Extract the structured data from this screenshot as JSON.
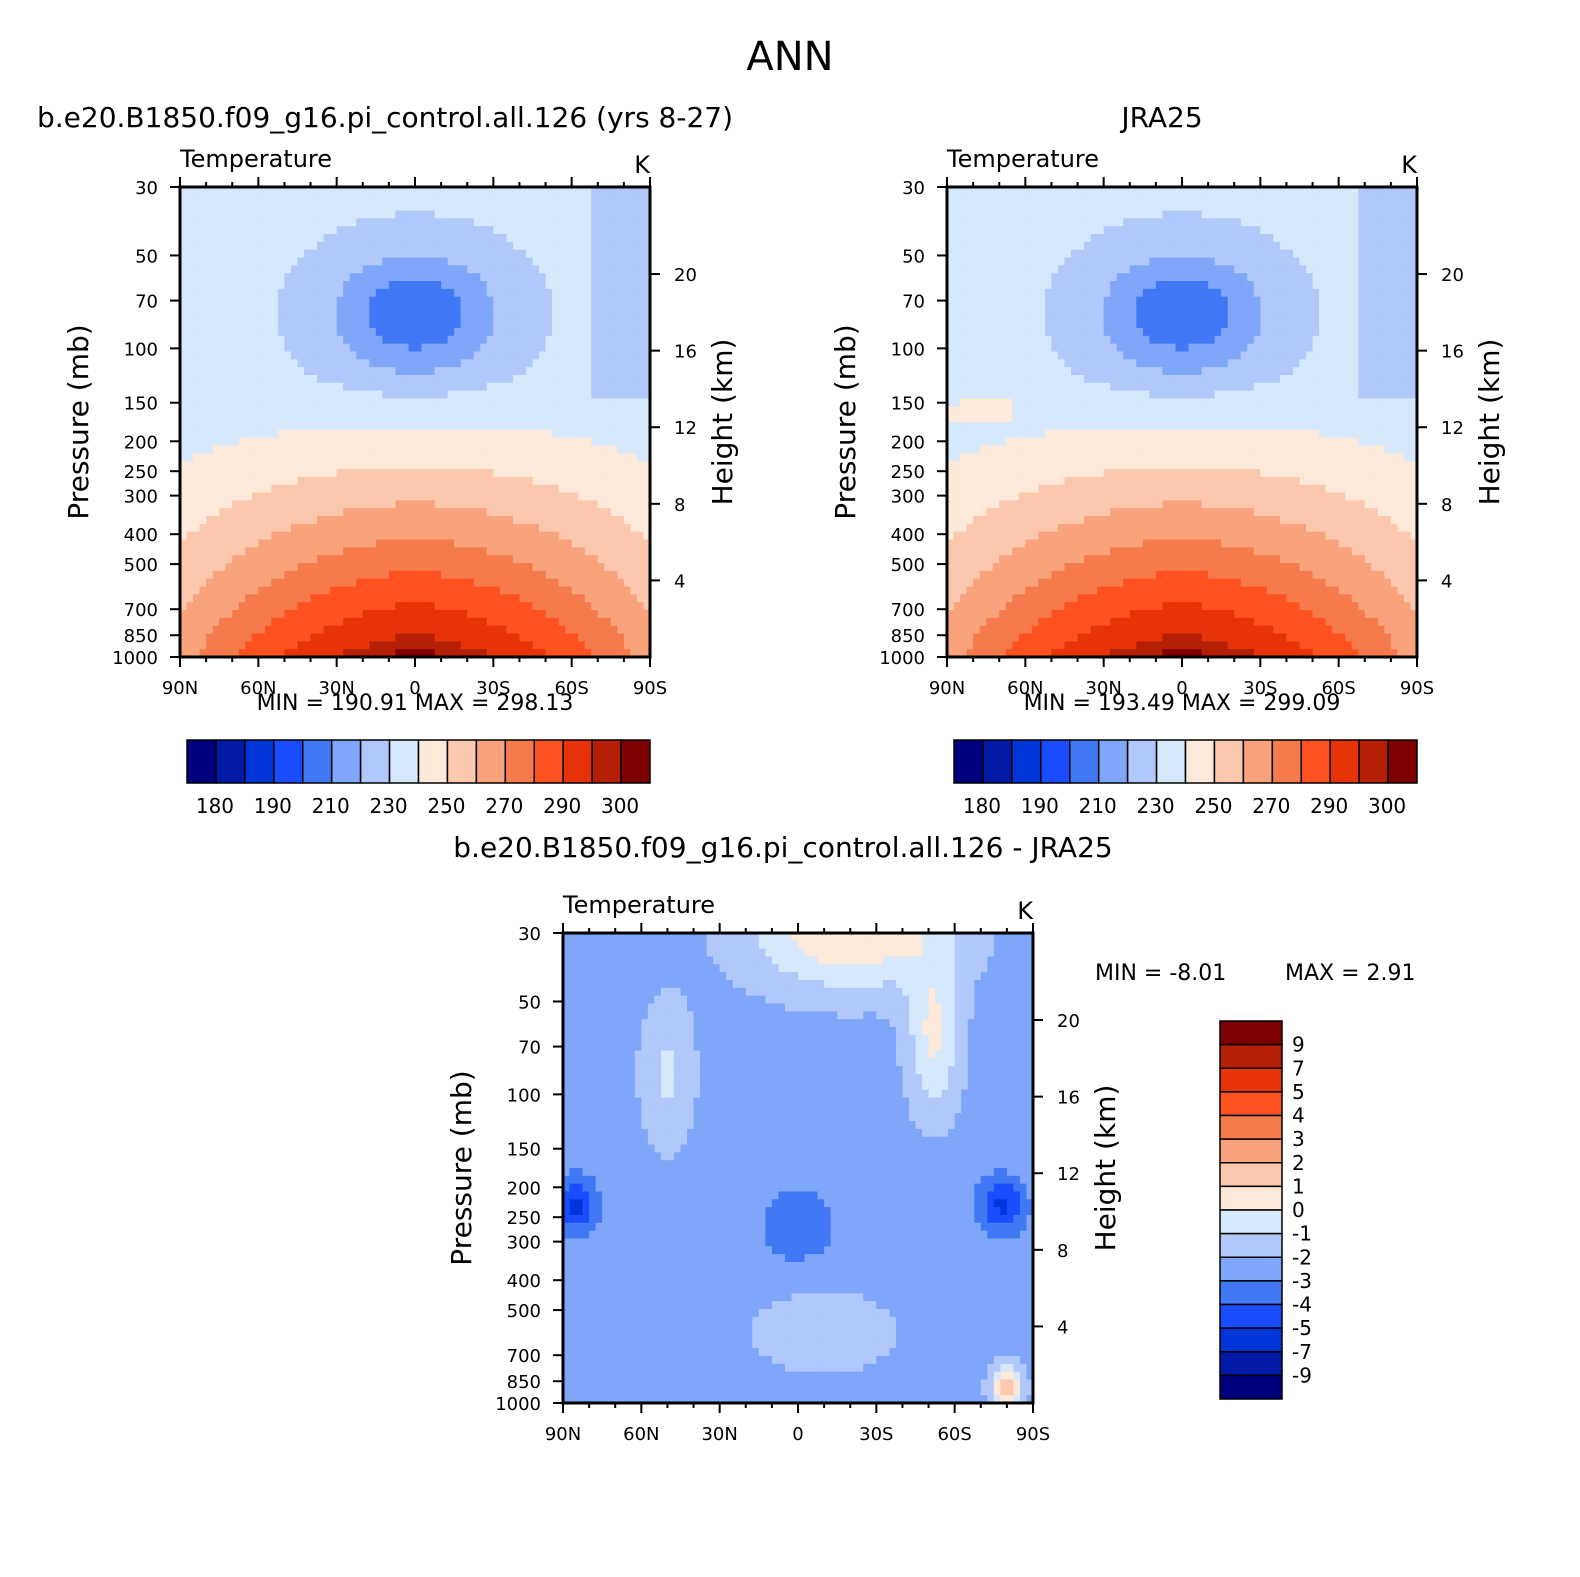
{
  "page_title": "ANN",
  "colors": {
    "temperature_palette": [
      "#00007f",
      "#0019a6",
      "#0036d9",
      "#1a4dff",
      "#4178f5",
      "#7fa6f8",
      "#b0c8fa",
      "#d6e8fb",
      "#fde9d9",
      "#fbc8ae",
      "#f9a37d",
      "#f57b4d",
      "#ff5220",
      "#e63308",
      "#b51f05",
      "#7f0000"
    ],
    "difference_palette": [
      "#00007f",
      "#0019a6",
      "#0036d9",
      "#1a4dff",
      "#4178f5",
      "#7fa6f8",
      "#b0c8fa",
      "#d6e8fb",
      "#fde9d9",
      "#fbc8ae",
      "#f9a37d",
      "#f57b4d",
      "#ff5220",
      "#e63308",
      "#b51f05",
      "#7f0000"
    ]
  },
  "chart_data": [
    {
      "type": "contour",
      "panel": "model",
      "title": "b.e20.B1850.f09_g16.pi_control.all.126 (yrs 8-27)",
      "subtitle_left": "Temperature",
      "units": "K",
      "ylabel": "Pressure (mb)",
      "ylabel_right": "Height (km)",
      "x_tick_labels": [
        "90N",
        "60N",
        "30N",
        "0",
        "30S",
        "60S",
        "90S"
      ],
      "y_tick_labels": [
        "30",
        "50",
        "70",
        "100",
        "150",
        "200",
        "250",
        "300",
        "400",
        "500",
        "700",
        "850",
        "1000"
      ],
      "y_right_tick_labels": [
        "20",
        "16",
        "12",
        "8",
        "4"
      ],
      "min_label": "MIN",
      "min_value": "190.91",
      "max_label": "MAX",
      "max_value": "298.13",
      "colorbar_labels": [
        "180",
        "190",
        "210",
        "230",
        "250",
        "270",
        "290",
        "300"
      ],
      "levels": [
        175,
        180,
        185,
        190,
        200,
        210,
        220,
        230,
        240,
        250,
        260,
        270,
        280,
        290,
        295,
        300
      ]
    },
    {
      "type": "contour",
      "panel": "obs",
      "title": "JRA25",
      "subtitle_left": "Temperature",
      "units": "K",
      "ylabel": "Pressure (mb)",
      "ylabel_right": "Height (km)",
      "x_tick_labels": [
        "90N",
        "60N",
        "30N",
        "0",
        "30S",
        "60S",
        "90S"
      ],
      "y_tick_labels": [
        "30",
        "50",
        "70",
        "100",
        "150",
        "200",
        "250",
        "300",
        "400",
        "500",
        "700",
        "850",
        "1000"
      ],
      "y_right_tick_labels": [
        "20",
        "16",
        "12",
        "8",
        "4"
      ],
      "min_label": "MIN",
      "min_value": "193.49",
      "max_label": "MAX",
      "max_value": "299.09",
      "colorbar_labels": [
        "180",
        "190",
        "210",
        "230",
        "250",
        "270",
        "290",
        "300"
      ],
      "levels": [
        175,
        180,
        185,
        190,
        200,
        210,
        220,
        230,
        240,
        250,
        260,
        270,
        280,
        290,
        295,
        300
      ]
    },
    {
      "type": "contour",
      "panel": "diff",
      "title": "b.e20.B1850.f09_g16.pi_control.all.126 - JRA25",
      "subtitle_left": "Temperature",
      "units": "K",
      "ylabel": "Pressure (mb)",
      "ylabel_right": "Height (km)",
      "x_tick_labels": [
        "90N",
        "60N",
        "30N",
        "0",
        "30S",
        "60S",
        "90S"
      ],
      "y_tick_labels": [
        "30",
        "50",
        "70",
        "100",
        "150",
        "200",
        "250",
        "300",
        "400",
        "500",
        "700",
        "850",
        "1000"
      ],
      "y_right_tick_labels": [
        "20",
        "16",
        "12",
        "8",
        "4"
      ],
      "min_label": "MIN",
      "min_value": "-8.01",
      "max_label": "MAX",
      "max_value": "2.91",
      "colorbar_labels": [
        "9",
        "7",
        "5",
        "4",
        "3",
        "2",
        "1",
        "0",
        "-1",
        "-2",
        "-3",
        "-4",
        "-5",
        "-7",
        "-9"
      ],
      "levels": [
        -9,
        -7,
        -5,
        -4,
        -3,
        -2,
        -1,
        0,
        1,
        2,
        3,
        4,
        5,
        7,
        9
      ]
    }
  ]
}
